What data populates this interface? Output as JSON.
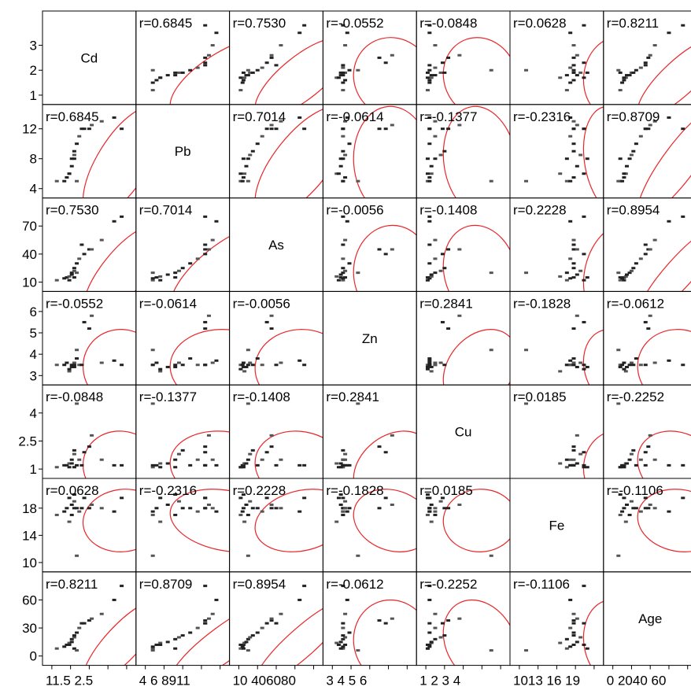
{
  "chart_data": {
    "type": "scatter",
    "variables": [
      "Cd",
      "Pb",
      "As",
      "Zn",
      "Cu",
      "Fe",
      "Age"
    ],
    "correlations": [
      [
        "",
        "r=0.6845",
        "r=0.7530",
        "r=-0.0552",
        "r=-0.0848",
        "r=0.0628",
        "r=0.8211"
      ],
      [
        "r=0.6845",
        "",
        "r=0.7014",
        "r=-0.0614",
        "r=-0.1377",
        "r=-0.2316",
        "r=0.8709"
      ],
      [
        "r=0.7530",
        "r=0.7014",
        "",
        "r=-0.0056",
        "r=-0.1408",
        "r=0.2228",
        "r=0.8954"
      ],
      [
        "r=-0.0552",
        "r=-0.0614",
        "r=-0.0056",
        "",
        "r=0.2841",
        "r=-0.1828",
        "r=-0.0612"
      ],
      [
        "r=-0.0848",
        "r=-0.1377",
        "r=-0.1408",
        "r=0.2841",
        "",
        "r=0.0185",
        "r=-0.2252"
      ],
      [
        "r=0.0628",
        "r=-0.2316",
        "r=0.2228",
        "r=-0.1828",
        "r=0.0185",
        "",
        "r=-0.1106"
      ],
      [
        "r=0.8211",
        "r=0.8709",
        "r=0.8954",
        "r=-0.0612",
        "r=-0.2252",
        "r=-0.1106",
        ""
      ]
    ],
    "ranges": [
      [
        1,
        4
      ],
      [
        4,
        14
      ],
      [
        10,
        90
      ],
      [
        3,
        6.5
      ],
      [
        1,
        5
      ],
      [
        10,
        21
      ],
      [
        0,
        80
      ]
    ],
    "y_ticks": [
      [
        "3",
        "2",
        "1"
      ],
      [
        "12",
        "8",
        "4"
      ],
      [
        "70",
        "40",
        "10"
      ],
      [
        "6",
        "5",
        "4",
        "3"
      ],
      [
        "4",
        "2.5",
        "1"
      ],
      [
        "18",
        "14",
        "10"
      ],
      [
        "60",
        "30",
        "0"
      ]
    ],
    "y_tick_values": [
      [
        3,
        2,
        1
      ],
      [
        12,
        8,
        4
      ],
      [
        70,
        40,
        10
      ],
      [
        6,
        5,
        4,
        3
      ],
      [
        4,
        2.5,
        1
      ],
      [
        18,
        14,
        10
      ],
      [
        60,
        30,
        0
      ]
    ],
    "x_ticks": [
      "11.5 2.5",
      "4 6 8911",
      "10 406080",
      "3 4 5 6",
      "1 2 3 4",
      "1013 16 19",
      "0 2040 60"
    ],
    "observations": {
      "Cd": [
        1.2,
        1.5,
        1.6,
        1.7,
        1.8,
        1.8,
        1.9,
        1.9,
        2.0,
        2.1,
        2.3,
        2.5,
        2.6,
        1.9,
        2.2,
        3.0,
        3.5,
        3.8,
        2.0,
        1.7
      ],
      "Pb": [
        5,
        5,
        5.5,
        6,
        7,
        8,
        8.5,
        9,
        10,
        11,
        12,
        12,
        12.5,
        8,
        12,
        13,
        13.5,
        12,
        5,
        6
      ],
      "As": [
        12,
        14,
        15,
        16,
        18,
        20,
        22,
        25,
        30,
        35,
        40,
        45,
        45,
        15,
        50,
        55,
        75,
        80,
        20,
        12
      ],
      "Zn": [
        3.5,
        3.5,
        3.6,
        3.2,
        3.4,
        3.5,
        3.6,
        3.5,
        3.8,
        3.5,
        5.5,
        5.2,
        5.8,
        3.4,
        3.5,
        3.6,
        3.7,
        3.5,
        4.2,
        3.3
      ],
      "Cu": [
        1.1,
        1.2,
        1.2,
        1.3,
        1.3,
        1.5,
        1.8,
        2.0,
        1.2,
        1.5,
        1.9,
        2.2,
        2.8,
        1.1,
        1.2,
        1.5,
        1.2,
        1.2,
        4.5,
        1.1
      ],
      "Fe": [
        17.0,
        17.5,
        18.0,
        16.0,
        18.5,
        17.0,
        19.0,
        18.0,
        18.0,
        17.5,
        19.5,
        18.0,
        18.5,
        20.0,
        18.0,
        18.0,
        17.5,
        19.5,
        11.0,
        19.5
      ],
      "Age": [
        8,
        10,
        12,
        14,
        15,
        18,
        20,
        22,
        25,
        30,
        35,
        38,
        40,
        8,
        35,
        45,
        60,
        75,
        6,
        12
      ]
    }
  }
}
